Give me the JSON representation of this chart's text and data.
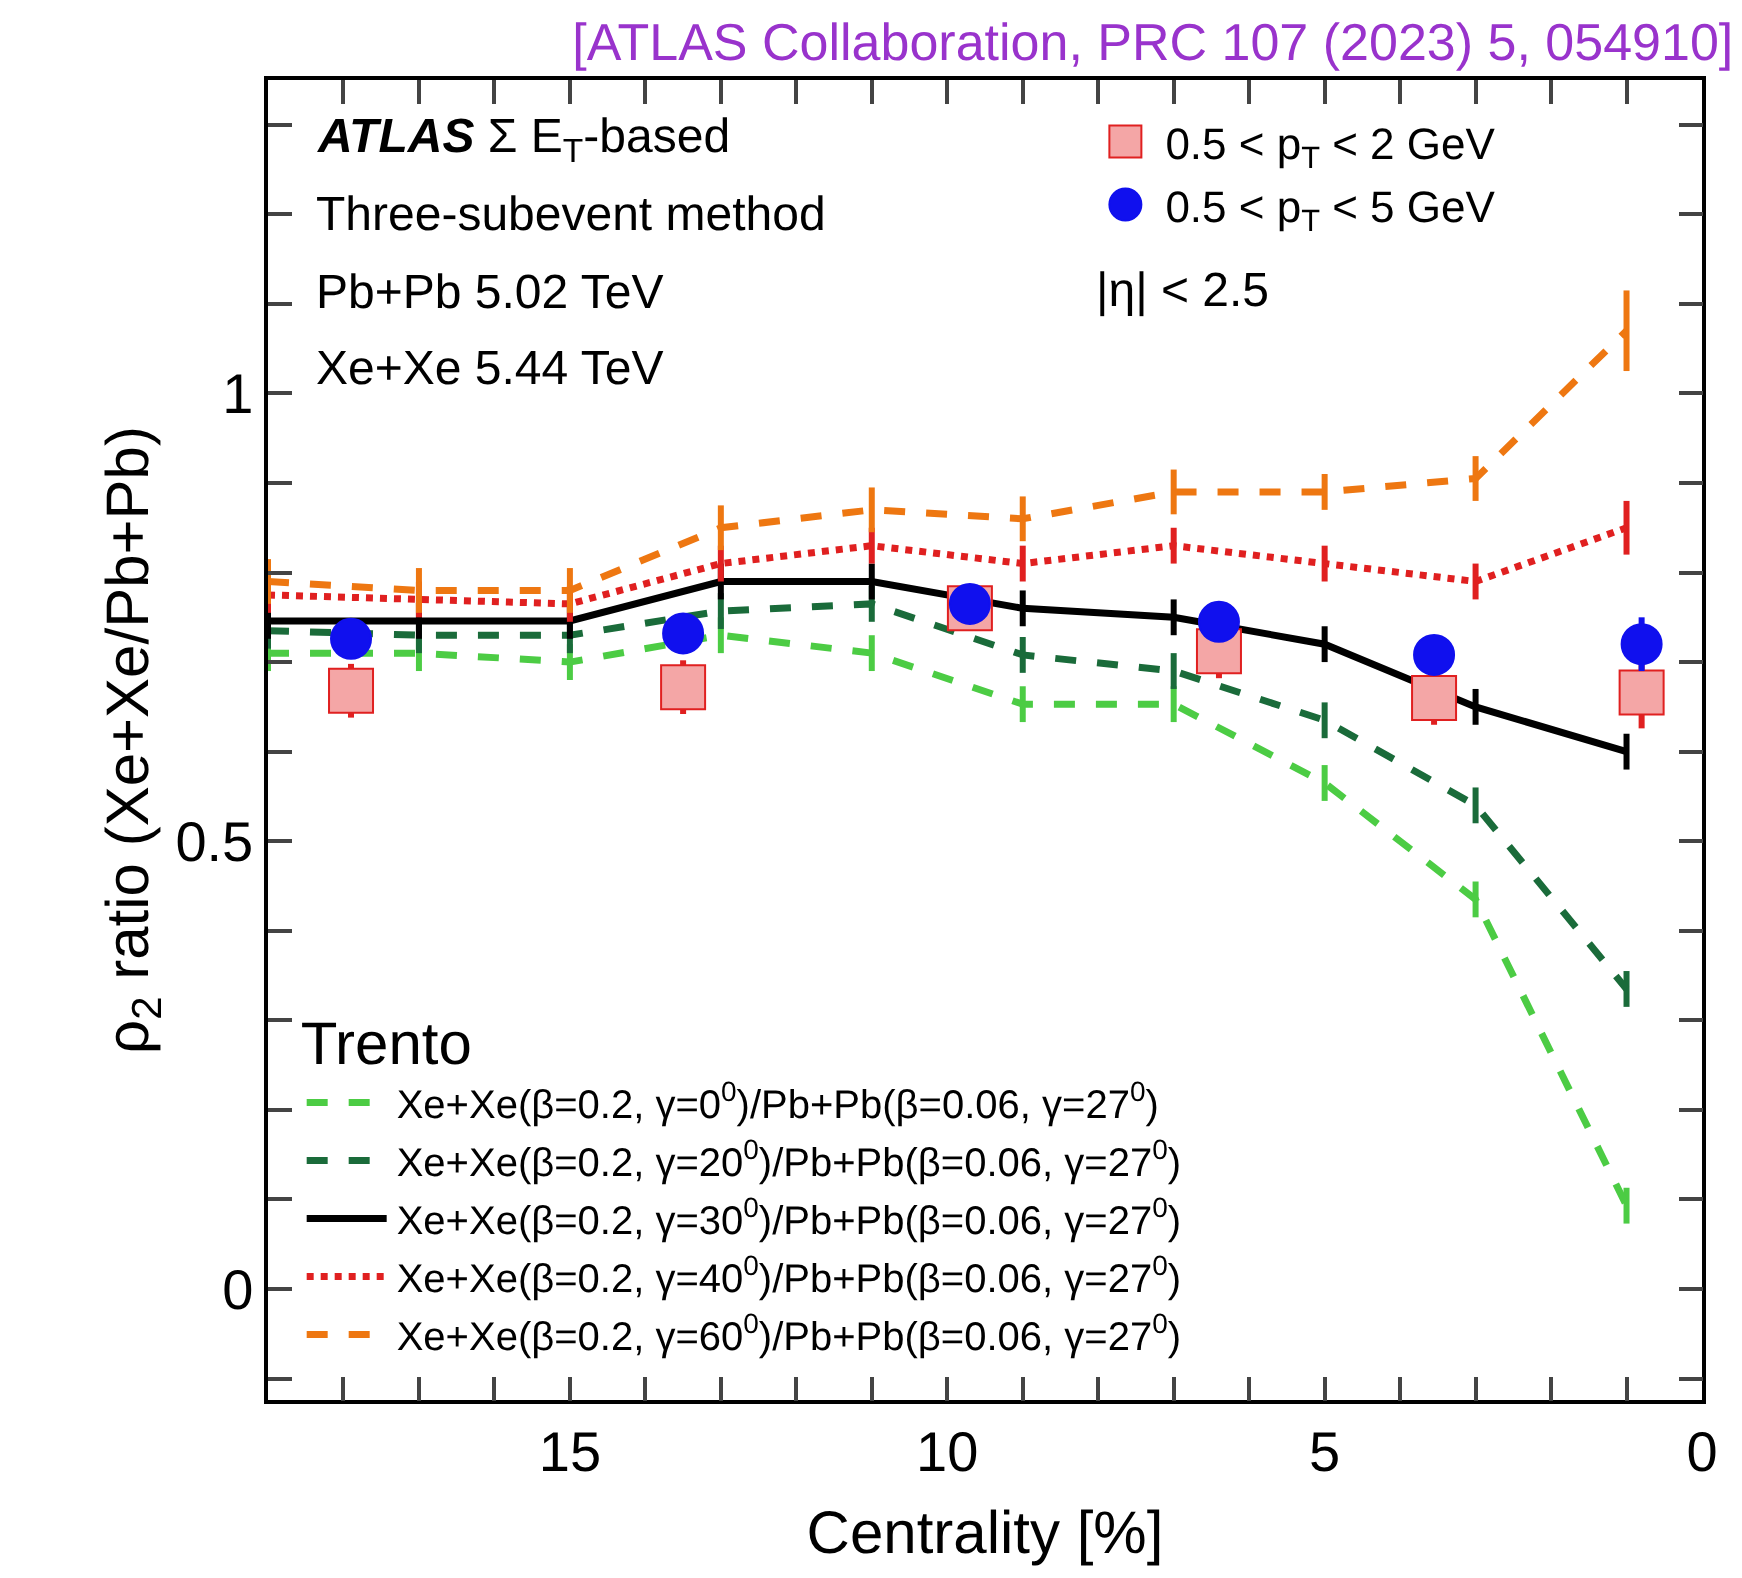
{
  "chart_data": {
    "type": "line",
    "title": "[ATLAS Collaboration, PRC 107 (2023) 5, 054910]",
    "xlabel": "Centrality [%]",
    "ylabel": "ρ$_{2}$ ratio (Xe+Xe/Pb+Pb)",
    "legend_title": "Trento",
    "annotations": [
      "ATLAS Σ E$_{T}$-based",
      "Three-subevent method",
      "Pb+Pb 5.02 TeV",
      "Xe+Xe 5.44 TeV",
      "|η| < 2.5"
    ],
    "xlim": [
      19,
      0
    ],
    "xticks": [
      0,
      {
        "value": 1,
        "label": null
      },
      {
        "value": 2,
        "label": null
      },
      {
        "value": 3,
        "label": null
      },
      {
        "value": 4,
        "label": null
      },
      5,
      {
        "value": 6,
        "label": null
      },
      {
        "value": 7,
        "label": null
      },
      {
        "value": 8,
        "label": null
      },
      {
        "value": 9,
        "label": null
      },
      10,
      {
        "value": 11,
        "label": null
      },
      {
        "value": 12,
        "label": null
      },
      {
        "value": 13,
        "label": null
      },
      {
        "value": 14,
        "label": null
      },
      15,
      {
        "value": 16,
        "label": null
      },
      {
        "value": 17,
        "label": null
      },
      {
        "value": 18,
        "label": null
      }
    ],
    "ylim": [
      -0.124,
      1.35
    ],
    "yticks": [
      {
        "value": -0.1,
        "label": null
      },
      0,
      {
        "value": 0.1,
        "label": null
      },
      {
        "value": 0.2,
        "label": null
      },
      {
        "value": 0.3,
        "label": null
      },
      {
        "value": 0.4,
        "label": null
      },
      0.5,
      {
        "value": 0.6,
        "label": null
      },
      {
        "value": 0.7,
        "label": null
      },
      {
        "value": 0.8,
        "label": null
      },
      {
        "value": 0.9,
        "label": null
      },
      1,
      {
        "value": 1.1,
        "label": null
      },
      {
        "value": 1.2,
        "label": null
      },
      {
        "value": 1.3,
        "label": null
      }
    ],
    "legend": "bottom left",
    "series": [
      {
        "name": "Xe+Xe(β=0.2, γ=0$^{0}$)/Pb+Pb(β=0.06, γ=27$^{0}$)",
        "line_style": "dashed",
        "marker": "none",
        "color": "#4ccc44",
        "x": [
          19,
          17,
          15,
          13,
          11,
          9,
          7,
          5,
          3,
          1
        ],
        "values": [
          0.71,
          0.71,
          0.7,
          0.73,
          0.71,
          0.653,
          0.653,
          0.565,
          0.435,
          0.093
        ],
        "errors": [
          0.02,
          0.02,
          0.02,
          0.02,
          0.02,
          0.02,
          0.02,
          0.02,
          0.02,
          0.02
        ]
      },
      {
        "name": "Xe+Xe(β=0.2, γ=20$^{0}$)/Pb+Pb(β=0.06, γ=27$^{0}$)",
        "line_style": "dashed",
        "marker": "none",
        "color": "#1a6b3a",
        "x": [
          19,
          17,
          15,
          13,
          11,
          9,
          7,
          5,
          3,
          1
        ],
        "values": [
          0.735,
          0.73,
          0.73,
          0.757,
          0.765,
          0.708,
          0.69,
          0.635,
          0.54,
          0.335
        ],
        "errors": [
          0.02,
          0.02,
          0.02,
          0.02,
          0.02,
          0.02,
          0.02,
          0.02,
          0.02,
          0.02
        ]
      },
      {
        "name": "Xe+Xe(β=0.2, γ=30$^{0}$)/Pb+Pb(β=0.06, γ=27$^{0}$)",
        "line_style": "solid",
        "marker": "none",
        "color": "#000000",
        "x": [
          19,
          17,
          15,
          13,
          11,
          9,
          7,
          5,
          3,
          1
        ],
        "values": [
          0.746,
          0.746,
          0.746,
          0.79,
          0.79,
          0.76,
          0.75,
          0.72,
          0.65,
          0.6
        ],
        "errors": [
          0.02,
          0.02,
          0.02,
          0.02,
          0.02,
          0.02,
          0.02,
          0.02,
          0.02,
          0.02
        ]
      },
      {
        "name": "Xe+Xe(β=0.2, γ=40$^{0}$)/Pb+Pb(β=0.06, γ=27$^{0}$)",
        "line_style": "dotted",
        "marker": "none",
        "color": "#e02020",
        "x": [
          19,
          17,
          15,
          13,
          11,
          9,
          7,
          5,
          3,
          1
        ],
        "values": [
          0.775,
          0.77,
          0.765,
          0.81,
          0.83,
          0.81,
          0.83,
          0.81,
          0.79,
          0.85
        ],
        "errors": [
          0.02,
          0.02,
          0.02,
          0.02,
          0.02,
          0.02,
          0.02,
          0.02,
          0.02,
          0.03
        ]
      },
      {
        "name": "Xe+Xe(β=0.2, γ=60$^{0}$)/Pb+Pb(β=0.06, γ=27$^{0}$)",
        "line_style": "dashed",
        "marker": "none",
        "color": "#ee7711",
        "x": [
          19,
          17,
          15,
          13,
          11,
          9,
          7,
          5,
          3,
          1
        ],
        "values": [
          0.79,
          0.78,
          0.78,
          0.85,
          0.87,
          0.86,
          0.89,
          0.89,
          0.905,
          1.07
        ],
        "errors": [
          0.025,
          0.025,
          0.025,
          0.025,
          0.025,
          0.025,
          0.025,
          0.02,
          0.025,
          0.045
        ]
      },
      {
        "name": "0.5 < p$_{T}$ < 2 GeV",
        "type": "scatter",
        "marker": "square",
        "color": "#e02020",
        "x": [
          17.9,
          13.5,
          9.7,
          6.4,
          3.55,
          0.8
        ],
        "values": [
          0.668,
          0.672,
          0.76,
          0.712,
          0.66,
          0.666
        ],
        "errors": [
          0.03,
          0.03,
          0.02,
          0.03,
          0.03,
          0.04
        ]
      },
      {
        "name": "0.5 < p$_{T}$ < 5 GeV",
        "type": "scatter",
        "marker": "circle",
        "color": "#1010ee",
        "x": [
          17.9,
          13.5,
          9.7,
          6.4,
          3.55,
          0.8
        ],
        "values": [
          0.726,
          0.732,
          0.765,
          0.745,
          0.708,
          0.72
        ],
        "errors": [
          0.02,
          0.02,
          0.02,
          0.02,
          0.02,
          0.03
        ]
      }
    ]
  }
}
